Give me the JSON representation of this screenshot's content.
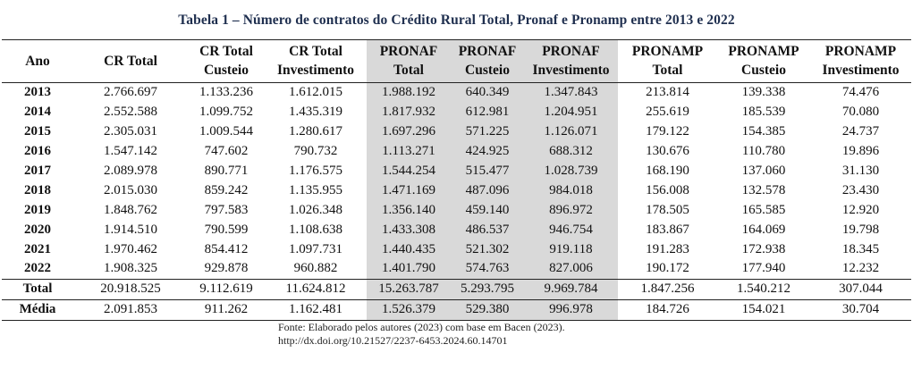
{
  "title": "Tabela 1 – Número de contratos do Crédito Rural Total, Pronaf e Pronamp entre 2013 e 2022",
  "columns": [
    {
      "line1": "Ano",
      "line2": ""
    },
    {
      "line1": "CR Total",
      "line2": ""
    },
    {
      "line1": "CR Total",
      "line2": "Custeio"
    },
    {
      "line1": "CR Total",
      "line2": "Investimento"
    },
    {
      "line1": "PRONAF",
      "line2": "Total"
    },
    {
      "line1": "PRONAF",
      "line2": "Custeio"
    },
    {
      "line1": "PRONAF",
      "line2": "Investimento"
    },
    {
      "line1": "PRONAMP",
      "line2": "Total"
    },
    {
      "line1": "PRONAMP",
      "line2": "Custeio"
    },
    {
      "line1": "PRONAMP",
      "line2": "Investimento"
    }
  ],
  "rows": [
    [
      "2013",
      "2.766.697",
      "1.133.236",
      "1.612.015",
      "1.988.192",
      "640.349",
      "1.347.843",
      "213.814",
      "139.338",
      "74.476"
    ],
    [
      "2014",
      "2.552.588",
      "1.099.752",
      "1.435.319",
      "1.817.932",
      "612.981",
      "1.204.951",
      "255.619",
      "185.539",
      "70.080"
    ],
    [
      "2015",
      "2.305.031",
      "1.009.544",
      "1.280.617",
      "1.697.296",
      "571.225",
      "1.126.071",
      "179.122",
      "154.385",
      "24.737"
    ],
    [
      "2016",
      "1.547.142",
      "747.602",
      "790.732",
      "1.113.271",
      "424.925",
      "688.312",
      "130.676",
      "110.780",
      "19.896"
    ],
    [
      "2017",
      "2.089.978",
      "890.771",
      "1.176.575",
      "1.544.254",
      "515.477",
      "1.028.739",
      "168.190",
      "137.060",
      "31.130"
    ],
    [
      "2018",
      "2.015.030",
      "859.242",
      "1.135.955",
      "1.471.169",
      "487.096",
      "984.018",
      "156.008",
      "132.578",
      "23.430"
    ],
    [
      "2019",
      "1.848.762",
      "797.583",
      "1.026.348",
      "1.356.140",
      "459.140",
      "896.972",
      "178.505",
      "165.585",
      "12.920"
    ],
    [
      "2020",
      "1.914.510",
      "790.599",
      "1.108.638",
      "1.433.308",
      "486.537",
      "946.754",
      "183.867",
      "164.069",
      "19.798"
    ],
    [
      "2021",
      "1.970.462",
      "854.412",
      "1.097.731",
      "1.440.435",
      "521.302",
      "919.118",
      "191.283",
      "172.938",
      "18.345"
    ],
    [
      "2022",
      "1.908.325",
      "929.878",
      "960.882",
      "1.401.790",
      "574.763",
      "827.006",
      "190.172",
      "177.940",
      "12.232"
    ]
  ],
  "total_row": [
    "Total",
    "20.918.525",
    "9.112.619",
    "11.624.812",
    "15.263.787",
    "5.293.795",
    "9.969.784",
    "1.847.256",
    "1.540.212",
    "307.044"
  ],
  "media_row": [
    "Média",
    "2.091.853",
    "911.262",
    "1.162.481",
    "1.526.379",
    "529.380",
    "996.978",
    "184.726",
    "154.021",
    "30.704"
  ],
  "source": {
    "line1": "Fonte: Elaborado pelos autores (2023) com base em Bacen (2023).",
    "line2": "http://dx.doi.org/10.21527/2237-6453.2024.60.14701"
  },
  "colors": {
    "highlight": "#d9d9d9",
    "title": "#1f2f4f"
  }
}
